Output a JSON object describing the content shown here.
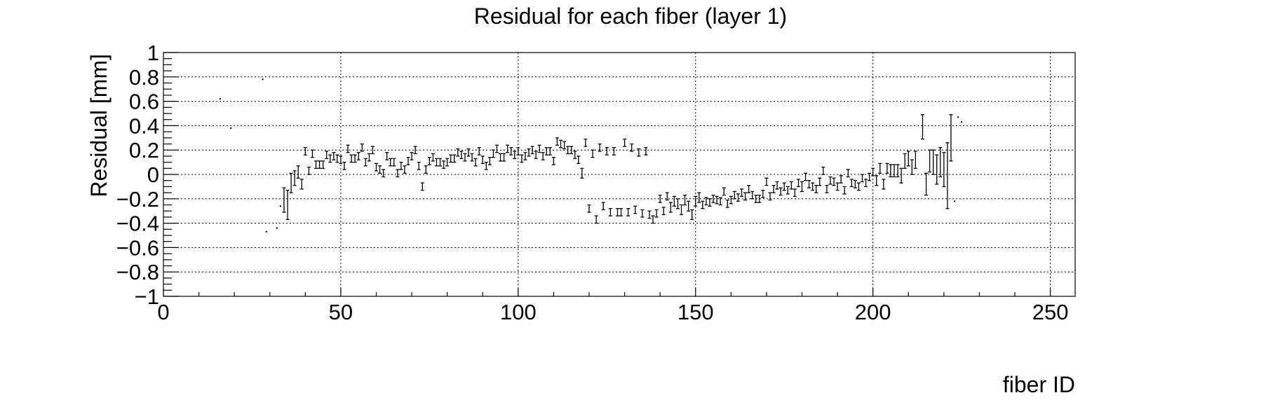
{
  "chart_data": {
    "type": "scatter",
    "title": "Residual for each fiber (layer 1)",
    "xlabel": "fiber ID",
    "ylabel": "Residual [mm]",
    "xlim": [
      0,
      257
    ],
    "ylim": [
      -1,
      1
    ],
    "grid": true,
    "x_ticks": [
      0,
      50,
      100,
      150,
      200,
      250
    ],
    "x_tick_labels": [
      "0",
      "50",
      "100",
      "150",
      "200",
      "250"
    ],
    "y_ticks": [
      -1,
      -0.8,
      -0.6,
      -0.4,
      -0.2,
      0,
      0.2,
      0.4,
      0.6,
      0.8,
      1
    ],
    "y_tick_labels": [
      "−1",
      "−0.8",
      "−0.6",
      "−0.4",
      "−0.2",
      "0",
      "0.2",
      "0.4",
      "0.6",
      "0.8",
      "1"
    ],
    "series": [
      {
        "points": [
          {
            "x": 16,
            "y": 0.62,
            "err": 0
          },
          {
            "x": 19,
            "y": 0.38,
            "err": 0
          },
          {
            "x": 28,
            "y": 0.78,
            "err": 0
          },
          {
            "x": 29,
            "y": -0.47,
            "err": 0
          },
          {
            "x": 32,
            "y": -0.44,
            "err": 0
          },
          {
            "x": 33,
            "y": -0.26,
            "err": 0
          },
          {
            "x": 34,
            "y": -0.21,
            "err": 0.1
          },
          {
            "x": 35,
            "y": -0.25,
            "err": 0.12
          },
          {
            "x": 36,
            "y": -0.07,
            "err": 0.08
          },
          {
            "x": 37,
            "y": -0.03,
            "err": 0.06
          },
          {
            "x": 38,
            "y": 0.02,
            "err": 0.05
          },
          {
            "x": 39,
            "y": -0.08,
            "err": 0.04
          },
          {
            "x": 40,
            "y": 0.19,
            "err": 0.03
          },
          {
            "x": 41,
            "y": 0.03,
            "err": 0.03
          },
          {
            "x": 42,
            "y": 0.17,
            "err": 0.03
          },
          {
            "x": 43,
            "y": 0.08,
            "err": 0.03
          },
          {
            "x": 44,
            "y": 0.08,
            "err": 0.03
          },
          {
            "x": 45,
            "y": 0.08,
            "err": 0.03
          },
          {
            "x": 46,
            "y": 0.16,
            "err": 0.03
          },
          {
            "x": 47,
            "y": 0.13,
            "err": 0.03
          },
          {
            "x": 48,
            "y": 0.15,
            "err": 0.03
          },
          {
            "x": 49,
            "y": 0.13,
            "err": 0.03
          },
          {
            "x": 50,
            "y": 0.12,
            "err": 0.03
          },
          {
            "x": 51,
            "y": 0.07,
            "err": 0.03
          },
          {
            "x": 52,
            "y": 0.21,
            "err": 0.03
          },
          {
            "x": 53,
            "y": 0.13,
            "err": 0.03
          },
          {
            "x": 54,
            "y": 0.13,
            "err": 0.03
          },
          {
            "x": 55,
            "y": 0.15,
            "err": 0.03
          },
          {
            "x": 56,
            "y": 0.22,
            "err": 0.03
          },
          {
            "x": 57,
            "y": 0.1,
            "err": 0.03
          },
          {
            "x": 58,
            "y": 0.14,
            "err": 0.03
          },
          {
            "x": 59,
            "y": 0.2,
            "err": 0.03
          },
          {
            "x": 60,
            "y": 0.06,
            "err": 0.03
          },
          {
            "x": 61,
            "y": 0.04,
            "err": 0.03
          },
          {
            "x": 62,
            "y": 0.01,
            "err": 0.03
          },
          {
            "x": 63,
            "y": 0.15,
            "err": 0.03
          },
          {
            "x": 64,
            "y": 0.1,
            "err": 0.03
          },
          {
            "x": 65,
            "y": 0.1,
            "err": 0.03
          },
          {
            "x": 66,
            "y": 0.01,
            "err": 0.03
          },
          {
            "x": 67,
            "y": 0.07,
            "err": 0.03
          },
          {
            "x": 68,
            "y": 0.04,
            "err": 0.03
          },
          {
            "x": 69,
            "y": 0.11,
            "err": 0.03
          },
          {
            "x": 70,
            "y": 0.15,
            "err": 0.03
          },
          {
            "x": 71,
            "y": 0.2,
            "err": 0.03
          },
          {
            "x": 72,
            "y": 0.07,
            "err": 0.03
          },
          {
            "x": 73,
            "y": -0.1,
            "err": 0.03
          },
          {
            "x": 74,
            "y": 0.04,
            "err": 0.03
          },
          {
            "x": 75,
            "y": 0.11,
            "err": 0.03
          },
          {
            "x": 76,
            "y": 0.14,
            "err": 0.03
          },
          {
            "x": 77,
            "y": 0.1,
            "err": 0.03
          },
          {
            "x": 78,
            "y": 0.1,
            "err": 0.03
          },
          {
            "x": 79,
            "y": 0.08,
            "err": 0.03
          },
          {
            "x": 80,
            "y": 0.1,
            "err": 0.03
          },
          {
            "x": 81,
            "y": 0.13,
            "err": 0.03
          },
          {
            "x": 82,
            "y": 0.13,
            "err": 0.03
          },
          {
            "x": 83,
            "y": 0.18,
            "err": 0.03
          },
          {
            "x": 84,
            "y": 0.16,
            "err": 0.03
          },
          {
            "x": 85,
            "y": 0.14,
            "err": 0.03
          },
          {
            "x": 86,
            "y": 0.18,
            "err": 0.03
          },
          {
            "x": 87,
            "y": 0.14,
            "err": 0.03
          },
          {
            "x": 88,
            "y": 0.1,
            "err": 0.03
          },
          {
            "x": 89,
            "y": 0.19,
            "err": 0.03
          },
          {
            "x": 90,
            "y": 0.12,
            "err": 0.03
          },
          {
            "x": 91,
            "y": 0.07,
            "err": 0.03
          },
          {
            "x": 92,
            "y": 0.11,
            "err": 0.03
          },
          {
            "x": 93,
            "y": 0.17,
            "err": 0.03
          },
          {
            "x": 94,
            "y": 0.21,
            "err": 0.03
          },
          {
            "x": 95,
            "y": 0.14,
            "err": 0.03
          },
          {
            "x": 96,
            "y": 0.14,
            "err": 0.03
          },
          {
            "x": 97,
            "y": 0.21,
            "err": 0.03
          },
          {
            "x": 98,
            "y": 0.19,
            "err": 0.03
          },
          {
            "x": 99,
            "y": 0.16,
            "err": 0.03
          },
          {
            "x": 100,
            "y": 0.19,
            "err": 0.03
          },
          {
            "x": 101,
            "y": 0.13,
            "err": 0.03
          },
          {
            "x": 102,
            "y": 0.15,
            "err": 0.03
          },
          {
            "x": 103,
            "y": 0.18,
            "err": 0.03
          },
          {
            "x": 104,
            "y": 0.2,
            "err": 0.03
          },
          {
            "x": 105,
            "y": 0.16,
            "err": 0.03
          },
          {
            "x": 106,
            "y": 0.21,
            "err": 0.03
          },
          {
            "x": 107,
            "y": 0.15,
            "err": 0.03
          },
          {
            "x": 108,
            "y": 0.19,
            "err": 0.03
          },
          {
            "x": 109,
            "y": 0.19,
            "err": 0.03
          },
          {
            "x": 110,
            "y": 0.11,
            "err": 0.03
          },
          {
            "x": 111,
            "y": 0.27,
            "err": 0.03
          },
          {
            "x": 112,
            "y": 0.25,
            "err": 0.03
          },
          {
            "x": 113,
            "y": 0.24,
            "err": 0.03
          },
          {
            "x": 114,
            "y": 0.2,
            "err": 0.03
          },
          {
            "x": 115,
            "y": 0.2,
            "err": 0.03
          },
          {
            "x": 116,
            "y": 0.16,
            "err": 0.03
          },
          {
            "x": 117,
            "y": 0.12,
            "err": 0.03
          },
          {
            "x": 118,
            "y": 0.01,
            "err": 0.04
          },
          {
            "x": 119,
            "y": 0.26,
            "err": 0.03
          },
          {
            "x": 120,
            "y": -0.28,
            "err": 0.03
          },
          {
            "x": 121,
            "y": 0.17,
            "err": 0.03
          },
          {
            "x": 122,
            "y": -0.37,
            "err": 0.03
          },
          {
            "x": 123,
            "y": 0.22,
            "err": 0.03
          },
          {
            "x": 124,
            "y": -0.26,
            "err": 0.03
          },
          {
            "x": 125,
            "y": 0.19,
            "err": 0.03
          },
          {
            "x": 126,
            "y": -0.31,
            "err": 0.03
          },
          {
            "x": 127,
            "y": 0.19,
            "err": 0.03
          },
          {
            "x": 128,
            "y": -0.31,
            "err": 0.03
          },
          {
            "x": 129,
            "y": -0.31,
            "err": 0.03
          },
          {
            "x": 130,
            "y": 0.26,
            "err": 0.03
          },
          {
            "x": 131,
            "y": -0.31,
            "err": 0.03
          },
          {
            "x": 132,
            "y": 0.22,
            "err": 0.03
          },
          {
            "x": 133,
            "y": -0.29,
            "err": 0.03
          },
          {
            "x": 134,
            "y": 0.18,
            "err": 0.03
          },
          {
            "x": 135,
            "y": -0.32,
            "err": 0.03
          },
          {
            "x": 136,
            "y": 0.19,
            "err": 0.03
          },
          {
            "x": 137,
            "y": -0.33,
            "err": 0.03
          },
          {
            "x": 138,
            "y": -0.37,
            "err": 0.03
          },
          {
            "x": 139,
            "y": -0.32,
            "err": 0.03
          },
          {
            "x": 140,
            "y": -0.2,
            "err": 0.03
          },
          {
            "x": 141,
            "y": -0.3,
            "err": 0.03
          },
          {
            "x": 142,
            "y": -0.18,
            "err": 0.03
          },
          {
            "x": 143,
            "y": -0.27,
            "err": 0.04
          },
          {
            "x": 144,
            "y": -0.22,
            "err": 0.04
          },
          {
            "x": 145,
            "y": -0.24,
            "err": 0.04
          },
          {
            "x": 146,
            "y": -0.29,
            "err": 0.04
          },
          {
            "x": 147,
            "y": -0.21,
            "err": 0.04
          },
          {
            "x": 148,
            "y": -0.26,
            "err": 0.04
          },
          {
            "x": 149,
            "y": -0.33,
            "err": 0.04
          },
          {
            "x": 150,
            "y": -0.22,
            "err": 0.04
          },
          {
            "x": 151,
            "y": -0.19,
            "err": 0.04
          },
          {
            "x": 152,
            "y": -0.25,
            "err": 0.03
          },
          {
            "x": 153,
            "y": -0.22,
            "err": 0.03
          },
          {
            "x": 154,
            "y": -0.23,
            "err": 0.03
          },
          {
            "x": 155,
            "y": -0.2,
            "err": 0.03
          },
          {
            "x": 156,
            "y": -0.21,
            "err": 0.03
          },
          {
            "x": 157,
            "y": -0.22,
            "err": 0.03
          },
          {
            "x": 158,
            "y": -0.14,
            "err": 0.03
          },
          {
            "x": 159,
            "y": -0.24,
            "err": 0.03
          },
          {
            "x": 160,
            "y": -0.21,
            "err": 0.03
          },
          {
            "x": 161,
            "y": -0.17,
            "err": 0.03
          },
          {
            "x": 162,
            "y": -0.19,
            "err": 0.03
          },
          {
            "x": 163,
            "y": -0.15,
            "err": 0.03
          },
          {
            "x": 164,
            "y": -0.18,
            "err": 0.03
          },
          {
            "x": 165,
            "y": -0.12,
            "err": 0.03
          },
          {
            "x": 166,
            "y": -0.17,
            "err": 0.03
          },
          {
            "x": 167,
            "y": -0.2,
            "err": 0.03
          },
          {
            "x": 168,
            "y": -0.2,
            "err": 0.03
          },
          {
            "x": 169,
            "y": -0.16,
            "err": 0.03
          },
          {
            "x": 170,
            "y": -0.06,
            "err": 0.03
          },
          {
            "x": 171,
            "y": -0.18,
            "err": 0.03
          },
          {
            "x": 172,
            "y": -0.12,
            "err": 0.03
          },
          {
            "x": 173,
            "y": -0.09,
            "err": 0.03
          },
          {
            "x": 174,
            "y": -0.14,
            "err": 0.03
          },
          {
            "x": 175,
            "y": -0.1,
            "err": 0.03
          },
          {
            "x": 176,
            "y": -0.13,
            "err": 0.03
          },
          {
            "x": 177,
            "y": -0.09,
            "err": 0.03
          },
          {
            "x": 178,
            "y": -0.15,
            "err": 0.03
          },
          {
            "x": 179,
            "y": -0.07,
            "err": 0.03
          },
          {
            "x": 180,
            "y": -0.1,
            "err": 0.04
          },
          {
            "x": 181,
            "y": -0.02,
            "err": 0.03
          },
          {
            "x": 182,
            "y": -0.08,
            "err": 0.03
          },
          {
            "x": 183,
            "y": -0.1,
            "err": 0.03
          },
          {
            "x": 184,
            "y": -0.12,
            "err": 0.03
          },
          {
            "x": 185,
            "y": -0.06,
            "err": 0.03
          },
          {
            "x": 186,
            "y": 0.03,
            "err": 0.03
          },
          {
            "x": 187,
            "y": -0.12,
            "err": 0.03
          },
          {
            "x": 188,
            "y": -0.05,
            "err": 0.03
          },
          {
            "x": 189,
            "y": -0.06,
            "err": 0.03
          },
          {
            "x": 190,
            "y": -0.1,
            "err": 0.03
          },
          {
            "x": 191,
            "y": -0.04,
            "err": 0.03
          },
          {
            "x": 192,
            "y": -0.13,
            "err": 0.03
          },
          {
            "x": 193,
            "y": 0.01,
            "err": 0.03
          },
          {
            "x": 194,
            "y": -0.07,
            "err": 0.03
          },
          {
            "x": 195,
            "y": -0.08,
            "err": 0.03
          },
          {
            "x": 196,
            "y": -0.1,
            "err": 0.03
          },
          {
            "x": 197,
            "y": -0.03,
            "err": 0.03
          },
          {
            "x": 198,
            "y": -0.07,
            "err": 0.03
          },
          {
            "x": 199,
            "y": -0.02,
            "err": 0.03
          },
          {
            "x": 200,
            "y": 0.02,
            "err": 0.03
          },
          {
            "x": 201,
            "y": -0.05,
            "err": 0.04
          },
          {
            "x": 202,
            "y": 0.05,
            "err": 0.04
          },
          {
            "x": 203,
            "y": -0.08,
            "err": 0.04
          },
          {
            "x": 204,
            "y": 0.05,
            "err": 0.04
          },
          {
            "x": 205,
            "y": 0.03,
            "err": 0.05
          },
          {
            "x": 206,
            "y": 0.03,
            "err": 0.05
          },
          {
            "x": 207,
            "y": 0.03,
            "err": 0.05
          },
          {
            "x": 208,
            "y": -0.01,
            "err": 0.06
          },
          {
            "x": 209,
            "y": 0.11,
            "err": 0.06
          },
          {
            "x": 210,
            "y": 0.13,
            "err": 0.06
          },
          {
            "x": 211,
            "y": 0.06,
            "err": 0.06
          },
          {
            "x": 212,
            "y": 0.12,
            "err": 0.07
          },
          {
            "x": 214,
            "y": 0.39,
            "err": 0.1
          },
          {
            "x": 215,
            "y": -0.08,
            "err": 0.09
          },
          {
            "x": 216,
            "y": 0.11,
            "err": 0.09
          },
          {
            "x": 217,
            "y": 0.1,
            "err": 0.1
          },
          {
            "x": 218,
            "y": 0.04,
            "err": 0.12
          },
          {
            "x": 219,
            "y": 0.1,
            "err": 0.12
          },
          {
            "x": 220,
            "y": 0.04,
            "err": 0.14
          },
          {
            "x": 221,
            "y": -0.01,
            "err": 0.27
          },
          {
            "x": 222,
            "y": 0.3,
            "err": 0.19
          },
          {
            "x": 223,
            "y": -0.22,
            "err": 0
          },
          {
            "x": 224,
            "y": 0.47,
            "err": 0
          },
          {
            "x": 225,
            "y": 0.43,
            "err": 0
          }
        ]
      }
    ]
  }
}
